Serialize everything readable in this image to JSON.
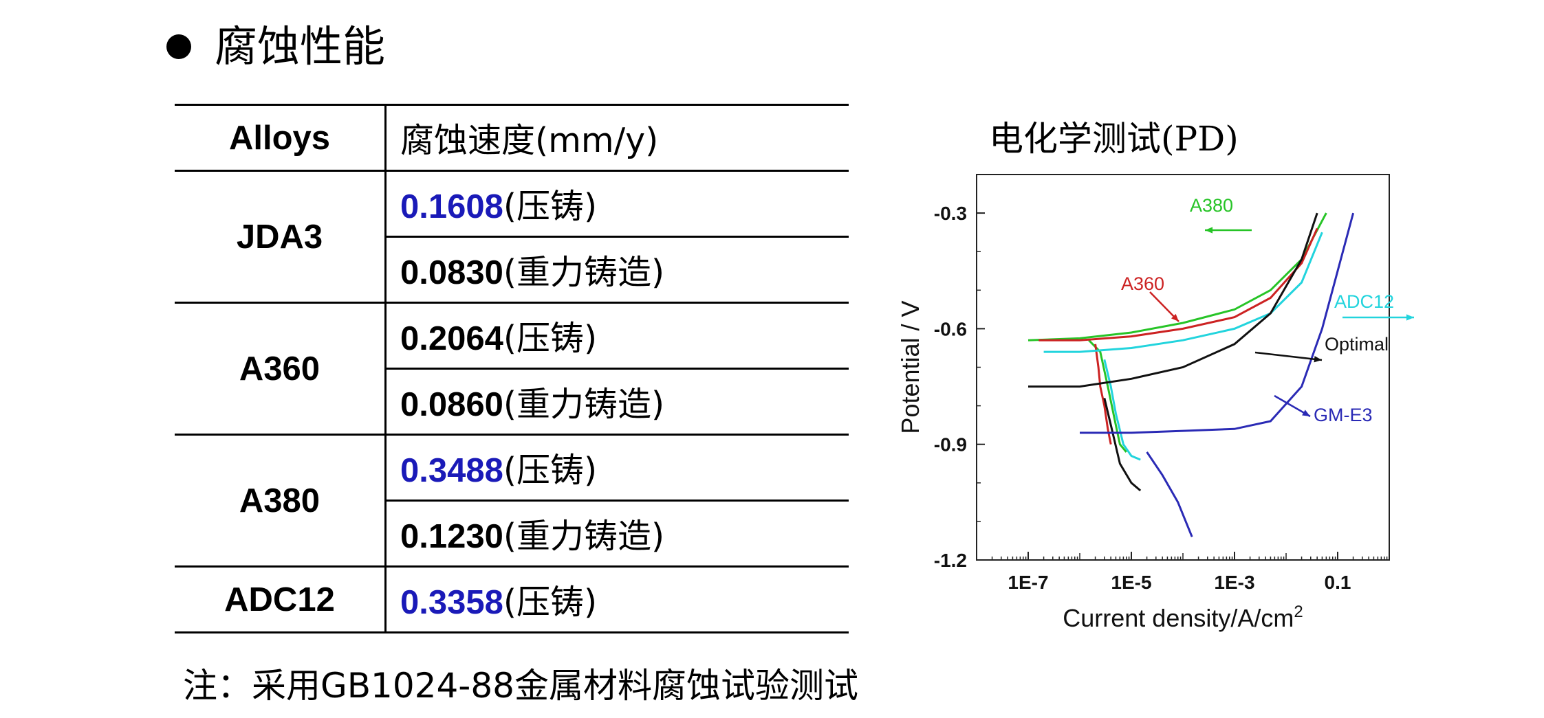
{
  "slide": {
    "title": "腐蚀性能"
  },
  "table": {
    "headers": {
      "alloys": "Alloys",
      "rate": "腐蚀速度(mm/y)"
    },
    "groups": [
      {
        "alloy": "JDA3",
        "rows": [
          {
            "value": "0.1608",
            "method": "(压铸)",
            "highlight": true
          },
          {
            "value": "0.0830",
            "method": "(重力铸造)",
            "highlight": false
          }
        ]
      },
      {
        "alloy": "A360",
        "rows": [
          {
            "value": "0.2064",
            "method": "(压铸)",
            "highlight": false
          },
          {
            "value": "0.0860",
            "method": "(重力铸造)",
            "highlight": false
          }
        ]
      },
      {
        "alloy": "A380",
        "rows": [
          {
            "value": "0.3488",
            "method": "(压铸)",
            "highlight": true
          },
          {
            "value": "0.1230",
            "method": "(重力铸造)",
            "highlight": false
          }
        ]
      },
      {
        "alloy": "ADC12",
        "rows": [
          {
            "value": "0.3358",
            "method": "(压铸)",
            "highlight": true
          }
        ]
      }
    ],
    "highlight_color": "#1a1ab8"
  },
  "footnote": "注：采用GB1024-88金属材料腐蚀试验测试",
  "chart_title": "电化学测试(PD)",
  "chart_data": {
    "type": "line",
    "xlabel": "Current density/A/cm",
    "xlabel_superscript": "2",
    "ylabel": "Potential / V",
    "x_scale": "log",
    "xlim": [
      1e-08,
      1
    ],
    "ylim": [
      -1.2,
      -0.2
    ],
    "x_ticks": [
      1e-07,
      1e-05,
      0.001,
      0.1
    ],
    "x_tick_labels": [
      "1E-7",
      "1E-5",
      "1E-3",
      "0.1"
    ],
    "y_ticks": [
      -0.3,
      -0.6,
      -0.9,
      -1.2
    ],
    "y_tick_labels": [
      "-0.3",
      "-0.6",
      "-0.9",
      "-1.2"
    ],
    "grid": false,
    "series": [
      {
        "name": "A380",
        "color": "#27c427",
        "x": [
          1e-07,
          1e-06,
          1e-05,
          0.0001,
          0.001,
          0.005,
          0.02,
          0.05,
          0.06
        ],
        "y": [
          -0.63,
          -0.625,
          -0.61,
          -0.585,
          -0.55,
          -0.5,
          -0.42,
          -0.32,
          -0.3
        ],
        "cathodic_x": [
          1.5e-06,
          2.5e-06,
          3.5e-06,
          5e-06,
          6e-06,
          8e-06
        ],
        "cathodic_y": [
          -0.63,
          -0.66,
          -0.75,
          -0.85,
          -0.9,
          -0.92
        ]
      },
      {
        "name": "A360",
        "color": "#cc2222",
        "x": [
          1.6e-07,
          1e-06,
          1e-05,
          0.0001,
          0.001,
          0.005,
          0.02,
          0.04
        ],
        "y": [
          -0.63,
          -0.63,
          -0.62,
          -0.6,
          -0.57,
          -0.52,
          -0.43,
          -0.34
        ],
        "cathodic_x": [
          2e-06,
          2.3e-06,
          2.5e-06,
          3e-06,
          3.5e-06,
          4e-06
        ],
        "cathodic_y": [
          -0.64,
          -0.7,
          -0.75,
          -0.8,
          -0.86,
          -0.9
        ]
      },
      {
        "name": "ADC12",
        "color": "#22d4dd",
        "x": [
          2e-07,
          1e-06,
          1e-05,
          0.0001,
          0.001,
          0.005,
          0.02,
          0.05
        ],
        "y": [
          -0.66,
          -0.66,
          -0.65,
          -0.63,
          -0.6,
          -0.56,
          -0.48,
          -0.35
        ],
        "cathodic_x": [
          3e-06,
          4e-06,
          5e-06,
          7e-06,
          1e-05,
          1.5e-05
        ],
        "cathodic_y": [
          -0.68,
          -0.75,
          -0.82,
          -0.9,
          -0.93,
          -0.94
        ]
      },
      {
        "name": "Optimal",
        "color": "#111111",
        "x": [
          1e-07,
          1e-06,
          1e-05,
          0.0001,
          0.001,
          0.005,
          0.02,
          0.04
        ],
        "y": [
          -0.75,
          -0.75,
          -0.73,
          -0.7,
          -0.64,
          -0.56,
          -0.42,
          -0.3
        ],
        "cathodic_x": [
          3e-06,
          4e-06,
          6e-06,
          1e-05,
          1.5e-05
        ],
        "cathodic_y": [
          -0.78,
          -0.85,
          -0.95,
          -1.0,
          -1.02
        ]
      },
      {
        "name": "GM-E3",
        "color": "#2a2ab5",
        "x": [
          1e-06,
          1e-05,
          0.0001,
          0.001,
          0.005,
          0.02,
          0.05,
          0.1,
          0.2
        ],
        "y": [
          -0.87,
          -0.87,
          -0.865,
          -0.86,
          -0.84,
          -0.75,
          -0.6,
          -0.45,
          -0.3
        ],
        "cathodic_x": [
          2e-05,
          4e-05,
          8e-05,
          0.00015
        ],
        "cathodic_y": [
          -0.92,
          -0.98,
          -1.05,
          -1.14
        ]
      }
    ],
    "annotations": [
      {
        "text": "A380",
        "color": "#27c427"
      },
      {
        "text": "A360",
        "color": "#cc2222"
      },
      {
        "text": "ADC12",
        "color": "#22d4dd"
      },
      {
        "text": "Optimal",
        "color": "#111111"
      },
      {
        "text": "GM-E3",
        "color": "#2a2ab5"
      }
    ]
  }
}
